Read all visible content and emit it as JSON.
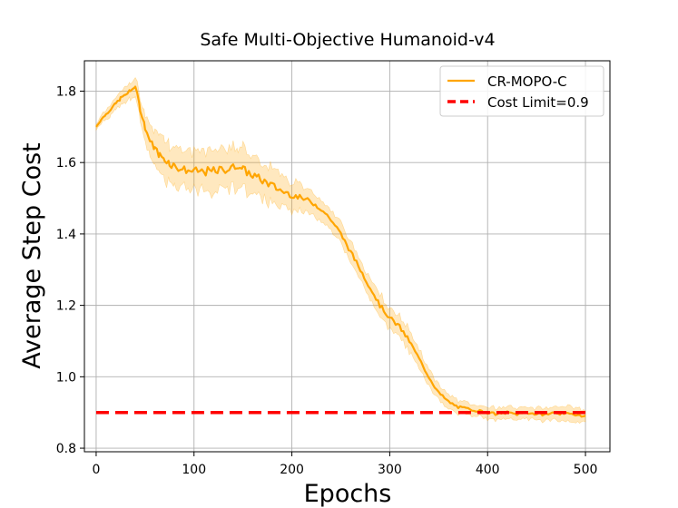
{
  "chart_data": {
    "type": "line",
    "title": "Safe Multi-Objective Humanoid-v4",
    "xlabel": "Epochs",
    "ylabel": "Average Step Cost",
    "xlim": [
      -12,
      525
    ],
    "ylim": [
      0.79,
      1.885
    ],
    "xticks": [
      0,
      100,
      200,
      300,
      400,
      500
    ],
    "yticks": [
      0.8,
      1.0,
      1.2,
      1.4,
      1.6,
      1.8
    ],
    "xtick_labels": [
      "0",
      "100",
      "200",
      "300",
      "400",
      "500"
    ],
    "ytick_labels": [
      "0.8",
      "1.0",
      "1.2",
      "1.4",
      "1.6",
      "1.8"
    ],
    "grid": true,
    "legend_position": "top-right",
    "series": [
      {
        "name": "CR-MOPO-C",
        "color": "#ffa500",
        "style": "solid",
        "x": [
          0,
          5,
          10,
          15,
          20,
          25,
          30,
          35,
          40,
          45,
          50,
          55,
          60,
          65,
          70,
          75,
          80,
          90,
          100,
          110,
          120,
          130,
          140,
          145,
          150,
          160,
          170,
          180,
          190,
          200,
          210,
          220,
          230,
          240,
          250,
          260,
          270,
          280,
          290,
          300,
          310,
          320,
          330,
          340,
          350,
          360,
          370,
          380,
          390,
          400,
          410,
          420,
          430,
          440,
          450,
          460,
          470,
          480,
          490,
          500
        ],
        "values": [
          1.7,
          1.72,
          1.735,
          1.75,
          1.765,
          1.78,
          1.79,
          1.8,
          1.815,
          1.75,
          1.7,
          1.66,
          1.64,
          1.62,
          1.61,
          1.6,
          1.59,
          1.58,
          1.575,
          1.575,
          1.575,
          1.58,
          1.585,
          1.595,
          1.58,
          1.565,
          1.55,
          1.535,
          1.52,
          1.51,
          1.5,
          1.49,
          1.47,
          1.44,
          1.4,
          1.35,
          1.3,
          1.25,
          1.2,
          1.165,
          1.14,
          1.1,
          1.05,
          1.0,
          0.955,
          0.93,
          0.915,
          0.91,
          0.905,
          0.9,
          0.895,
          0.9,
          0.895,
          0.9,
          0.895,
          0.895,
          0.9,
          0.895,
          0.895,
          0.89
        ],
        "band": [
          0.01,
          0.015,
          0.015,
          0.02,
          0.02,
          0.025,
          0.025,
          0.03,
          0.03,
          0.04,
          0.045,
          0.05,
          0.055,
          0.06,
          0.065,
          0.065,
          0.065,
          0.065,
          0.065,
          0.07,
          0.075,
          0.07,
          0.07,
          0.07,
          0.07,
          0.065,
          0.065,
          0.06,
          0.055,
          0.05,
          0.04,
          0.04,
          0.035,
          0.035,
          0.035,
          0.035,
          0.035,
          0.035,
          0.035,
          0.035,
          0.035,
          0.035,
          0.03,
          0.03,
          0.025,
          0.025,
          0.02,
          0.02,
          0.02,
          0.02,
          0.02,
          0.02,
          0.02,
          0.02,
          0.02,
          0.02,
          0.025,
          0.025,
          0.025,
          0.02
        ]
      },
      {
        "name": "Cost Limit=0.9",
        "color": "#ff0000",
        "style": "dashed",
        "x": [
          0,
          500
        ],
        "values": [
          0.9,
          0.9
        ]
      }
    ]
  }
}
